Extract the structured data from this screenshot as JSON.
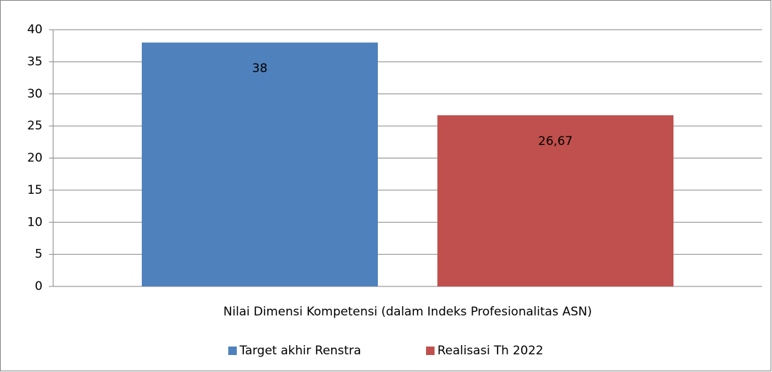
{
  "chart_data": {
    "type": "bar",
    "categories": [
      "Nilai Dimensi Kompetensi (dalam Indeks Profesionalitas ASN)"
    ],
    "series": [
      {
        "name": "Target akhir Renstra",
        "color": "#4f81bd",
        "values": [
          38
        ],
        "value_labels": [
          "38"
        ]
      },
      {
        "name": "Realisasi Th 2022",
        "color": "#c0504d",
        "values": [
          26.67
        ],
        "value_labels": [
          "26,67"
        ]
      }
    ],
    "ylim": [
      0,
      40
    ],
    "yticks": [
      0,
      5,
      10,
      15,
      20,
      25,
      30,
      35,
      40
    ],
    "grid": true,
    "legend": "bottom"
  }
}
